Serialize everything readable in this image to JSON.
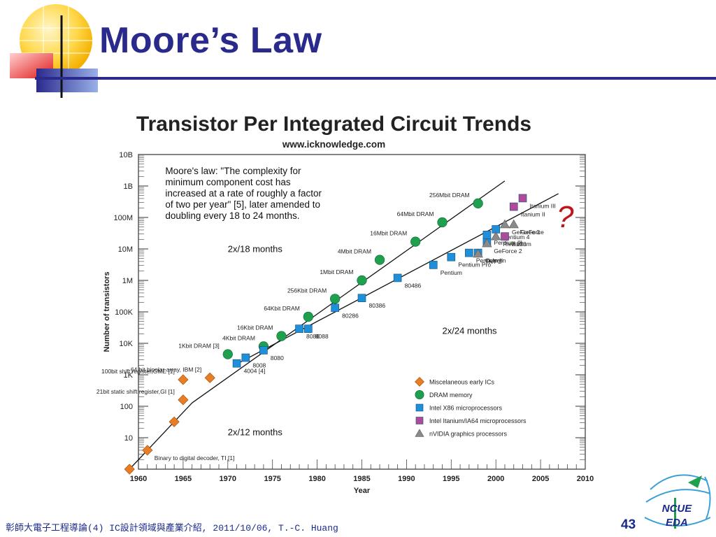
{
  "slide": {
    "title": "Moore’s Law",
    "footer": "彰師大電子工程導論(4) IC設計領域與產業介紹, 2011/10/06, T.-C. Huang",
    "page_number": "43",
    "logo_text": [
      "NCUE",
      "EDA"
    ],
    "accent_question": "?",
    "colors": {
      "title": "#2a2a8c",
      "question": "#c0141c"
    }
  },
  "chart_data": {
    "type": "scatter",
    "title": "Transistor Per Integrated Circuit Trends",
    "subtitle": "www.icknowledge.com",
    "xlabel": "Year",
    "ylabel": "Number of transistors",
    "xlim": [
      1960,
      2010
    ],
    "y_scale": "log",
    "ylim": [
      1,
      10000000000
    ],
    "x_ticks": [
      1960,
      1965,
      1970,
      1975,
      1980,
      1985,
      1990,
      1995,
      2000,
      2005,
      2010
    ],
    "y_ticks": [
      {
        "value": 1,
        "label": "1"
      },
      {
        "value": 10,
        "label": "10"
      },
      {
        "value": 100,
        "label": "100"
      },
      {
        "value": 1000,
        "label": "1K"
      },
      {
        "value": 10000,
        "label": "10K"
      },
      {
        "value": 100000,
        "label": "100K"
      },
      {
        "value": 1000000,
        "label": "1M"
      },
      {
        "value": 10000000,
        "label": "10M"
      },
      {
        "value": 100000000,
        "label": "100M"
      },
      {
        "value": 1000000000,
        "label": "1B"
      },
      {
        "value": 10000000000,
        "label": "10B"
      }
    ],
    "quote": [
      "Moore's law: \"The complexity for",
      "minimum component cost has",
      "increased at a rate of roughly a factor",
      "of two per year\" [5], later amended to",
      "doubling every 18 to 24 months."
    ],
    "trend_lines": [
      {
        "label": "2x/12 months",
        "from": [
          1959,
          1
        ],
        "to": [
          1966,
          128
        ],
        "label_at": [
          1970,
          12
        ]
      },
      {
        "label": "2x/18 months",
        "from": [
          1966,
          128
        ],
        "to": [
          2001,
          1450000000
        ],
        "label_at": [
          1970,
          8000000
        ]
      },
      {
        "label": "2x/24 months",
        "from": [
          1971,
          2200
        ],
        "to": [
          2007,
          570000000
        ],
        "label_at": [
          1994,
          20000
        ]
      }
    ],
    "legend": {
      "position": "bottom-right",
      "entries": [
        {
          "marker": "diamond",
          "color": "#e87d24",
          "label": "Miscelaneous early ICs"
        },
        {
          "marker": "circle",
          "color": "#1ea04e",
          "label": "DRAM memory"
        },
        {
          "marker": "square",
          "color": "#1e8fd8",
          "label": "Intel X86 microprocessors"
        },
        {
          "marker": "square",
          "color": "#b04a9a",
          "label": "Intel Itanium/IA64 microprocessors"
        },
        {
          "marker": "triangle",
          "color": "#8a8a8a",
          "label": "nVIDIA graphics processors"
        }
      ]
    },
    "series": [
      {
        "marker": "diamond",
        "color": "#e87d24",
        "points": [
          {
            "x": 1959,
            "y": 1,
            "label": ""
          },
          {
            "x": 1961,
            "y": 4,
            "label": "Binary to digital decoder, TI [1]"
          },
          {
            "x": 1964,
            "y": 32,
            "label": ""
          },
          {
            "x": 1965,
            "y": 160,
            "label": "21bit static shift register,GI [1]"
          },
          {
            "x": 1965,
            "y": 700,
            "label": "100bit shift register,GME [1]"
          },
          {
            "x": 1968,
            "y": 800,
            "label": "64 bit bipolar array, IBM [2]"
          }
        ]
      },
      {
        "marker": "circle",
        "color": "#1ea04e",
        "points": [
          {
            "x": 1970,
            "y": 4500,
            "label": "1Kbit DRAM [3]"
          },
          {
            "x": 1974,
            "y": 8000,
            "label": "4Kbit DRAM"
          },
          {
            "x": 1976,
            "y": 17000,
            "label": "16Kbit DRAM"
          },
          {
            "x": 1979,
            "y": 70000,
            "label": "64Kbit DRAM"
          },
          {
            "x": 1982,
            "y": 260000,
            "label": "256Kbit DRAM"
          },
          {
            "x": 1985,
            "y": 1000000,
            "label": "1Mbit DRAM"
          },
          {
            "x": 1987,
            "y": 4500000,
            "label": "4Mbit DRAM"
          },
          {
            "x": 1991,
            "y": 17000000,
            "label": "16Mbit DRAM"
          },
          {
            "x": 1994,
            "y": 70000000,
            "label": "64Mbit DRAM"
          },
          {
            "x": 1998,
            "y": 280000000,
            "label": "256Mbit DRAM"
          }
        ]
      },
      {
        "marker": "square",
        "color": "#1e8fd8",
        "points": [
          {
            "x": 1971,
            "y": 2300,
            "label": "4004 [4]"
          },
          {
            "x": 1972,
            "y": 3500,
            "label": "8008"
          },
          {
            "x": 1974,
            "y": 6000,
            "label": "8080"
          },
          {
            "x": 1978,
            "y": 29000,
            "label": "8086"
          },
          {
            "x": 1979,
            "y": 29000,
            "label": "8088"
          },
          {
            "x": 1982,
            "y": 134000,
            "label": "80286"
          },
          {
            "x": 1985,
            "y": 275000,
            "label": "80386"
          },
          {
            "x": 1989,
            "y": 1200000,
            "label": "80486"
          },
          {
            "x": 1993,
            "y": 3100000,
            "label": "Pentium"
          },
          {
            "x": 1995,
            "y": 5500000,
            "label": "Pentium Pro"
          },
          {
            "x": 1997,
            "y": 7500000,
            "label": "Pentium II"
          },
          {
            "x": 1998,
            "y": 7500000,
            "label": "Celeron"
          },
          {
            "x": 1999,
            "y": 17000000,
            "label": ""
          },
          {
            "x": 1999,
            "y": 28000000,
            "label": "Pentium III"
          },
          {
            "x": 2000,
            "y": 42000000,
            "label": "Pentium 4"
          }
        ]
      },
      {
        "marker": "square",
        "color": "#b04a9a",
        "points": [
          {
            "x": 2001,
            "y": 25000000,
            "label": "Itanium"
          },
          {
            "x": 2002,
            "y": 220000000,
            "label": "Itanium II"
          },
          {
            "x": 2003,
            "y": 410000000,
            "label": "Itanium III"
          }
        ]
      },
      {
        "marker": "triangle",
        "color": "#8a8a8a",
        "points": [
          {
            "x": 1998,
            "y": 7000000,
            "label": "TNT 2"
          },
          {
            "x": 1999,
            "y": 15000000,
            "label": "GeForce 2"
          },
          {
            "x": 2000,
            "y": 25000000,
            "label": "Riva 128"
          },
          {
            "x": 2001,
            "y": 60000000,
            "label": "GeForce 3"
          },
          {
            "x": 2002,
            "y": 60000000,
            "label": "GeForce"
          }
        ]
      }
    ]
  }
}
